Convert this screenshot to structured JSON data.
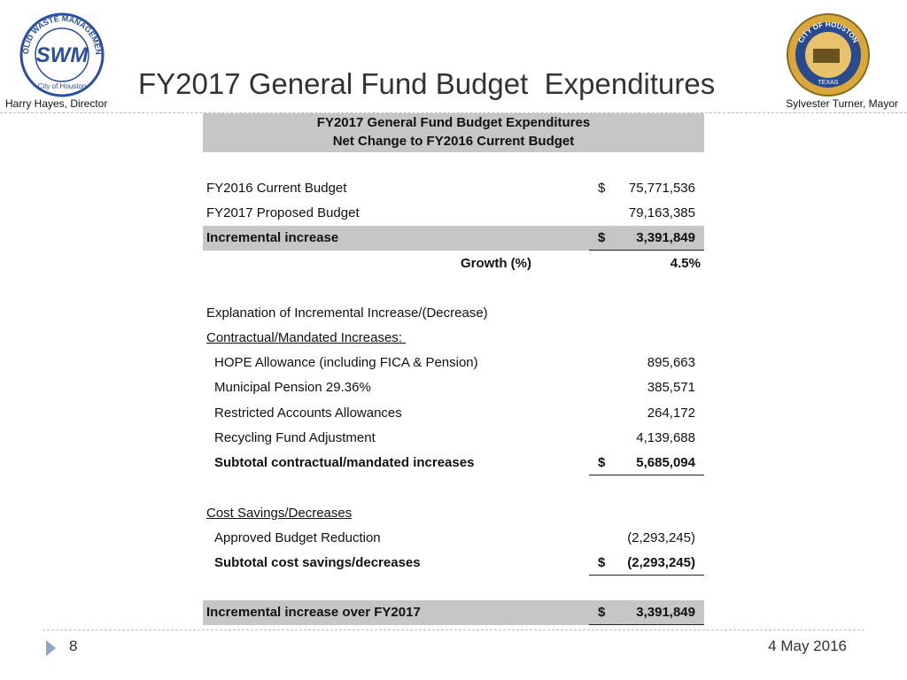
{
  "header": {
    "title": "FY2017 General Fund Budget  Expenditures",
    "left_caption": "Harry Hayes, Director",
    "right_caption": "Sylvester Turner, Mayor",
    "left_logo": {
      "ring": "SOLID WASTE MANAGEMENT",
      "mark": "SWM",
      "base": "City of Houston"
    },
    "right_logo": {
      "ring": "CITY OF HOUSTON",
      "base": "TEXAS"
    }
  },
  "table": {
    "heading": [
      "FY2017 General Fund Budget Expenditures",
      "Net Change to FY2016 Current Budget"
    ],
    "rows": [
      {
        "label": "FY2016 Current Budget",
        "currency": "$",
        "amount": "75,771,536"
      },
      {
        "label": "FY2017 Proposed Budget",
        "amount": "79,163,385"
      },
      {
        "label": "Incremental increase",
        "currency": "$",
        "amount": "3,391,849"
      },
      {
        "label": "Growth (%)",
        "amount": "4.5%"
      },
      {
        "label": "Explanation of Incremental Increase/(Decrease)"
      },
      {
        "label": "Contractual/Mandated Increases: "
      },
      {
        "label": "HOPE Allowance (including FICA & Pension)",
        "amount": "895,663"
      },
      {
        "label": "Municipal Pension 29.36%",
        "amount": "385,571"
      },
      {
        "label": "Restricted Accounts Allowances",
        "amount": "264,172"
      },
      {
        "label": "Recycling Fund Adjustment",
        "amount": "4,139,688"
      },
      {
        "label": "Subtotal contractual/mandated increases",
        "currency": "$",
        "amount": "5,685,094"
      },
      {
        "label": "Cost Savings/Decreases"
      },
      {
        "label": "Approved Budget Reduction",
        "amount": "(2,293,245)"
      },
      {
        "label": "Subtotal cost savings/decreases",
        "currency": "$",
        "amount": "(2,293,245)"
      },
      {
        "label": "Incremental increase over FY2017",
        "currency": "$",
        "amount": "3,391,849"
      }
    ]
  },
  "footer": {
    "page": "8",
    "date": "4 May 2016"
  }
}
